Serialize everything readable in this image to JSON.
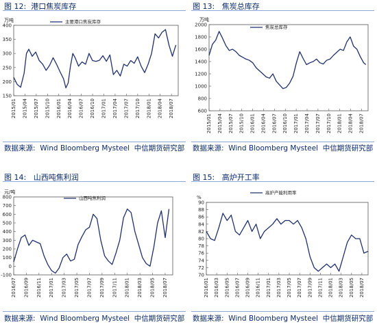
{
  "panels": [
    {
      "fig_title": "图 12:  港口焦炭库存",
      "source": "数据来源:  Wind Bloomberg Mysteel  中信期货研究部",
      "chart_data": {
        "type": "line",
        "unit": "万吨",
        "ylim": [
          150,
          400
        ],
        "yticks": [
          150,
          200,
          250,
          300,
          350,
          400
        ],
        "x_ticks": [
          "2015/01",
          "2015/04",
          "2015/07",
          "2015/10",
          "2016/01",
          "2016/04",
          "2016/07",
          "2016/10",
          "2017/01",
          "2017/04",
          "2017/07",
          "2017/10",
          "2018/01",
          "2018/04",
          "2018/07"
        ],
        "xlim": [
          0,
          14.2
        ],
        "legend": "position:top-right",
        "series": [
          {
            "name": "主要港口焦炭库存",
            "color": "#1f2f6e",
            "x": [
              0,
              0.3,
              0.6,
              0.9,
              1.1,
              1.3,
              1.6,
              1.9,
              2.2,
              2.5,
              2.8,
              3.1,
              3.4,
              3.7,
              4.0,
              4.3,
              4.5,
              4.7,
              4.9,
              5.1,
              5.3,
              5.6,
              5.9,
              6.2,
              6.5,
              6.8,
              7.1,
              7.4,
              7.7,
              8.0,
              8.3,
              8.6,
              8.9,
              9.2,
              9.5,
              9.8,
              10.1,
              10.4,
              10.7,
              11.0,
              11.3,
              11.6,
              11.9,
              12.2,
              12.5,
              12.8,
              13.1,
              13.4,
              13.7,
              14.0
            ],
            "y": [
              215,
              190,
              180,
              230,
              300,
              315,
              290,
              305,
              275,
              262,
              240,
              258,
              285,
              262,
              235,
              210,
              178,
              195,
              255,
              300,
              285,
              255,
              270,
              262,
              300,
              275,
              272,
              276,
              292,
              272,
              295,
              225,
              240,
              220,
              262,
              255,
              275,
              265,
              288,
              255,
              232,
              262,
              300,
              370,
              355,
              375,
              385,
              330,
              290,
              330
            ]
          }
        ]
      }
    },
    {
      "fig_title": "图 13:   焦炭总库存",
      "source": "数据来源:  Wind Bloomberg Mysteel  中信期货研究部",
      "chart_data": {
        "type": "line",
        "unit": "万吨",
        "ylim": [
          600,
          2000
        ],
        "yticks": [
          600,
          800,
          1000,
          1200,
          1400,
          1600,
          1800,
          2000
        ],
        "x_ticks": [
          "2015/01",
          "2015/04",
          "2015/07",
          "2015/10",
          "2016/01",
          "2016/04",
          "2016/07",
          "2016/10",
          "2017/01",
          "2017/04",
          "2017/07",
          "2017/10",
          "2018/01",
          "2018/04",
          "2018/07"
        ],
        "xlim": [
          0,
          14.2
        ],
        "legend": "position:top-right",
        "series": [
          {
            "name": "焦炭总库存",
            "color": "#1f2f6e",
            "x": [
              0,
              0.3,
              0.6,
              0.9,
              1.2,
              1.5,
              1.8,
              2.1,
              2.4,
              2.7,
              3.0,
              3.3,
              3.6,
              3.9,
              4.2,
              4.5,
              4.8,
              5.1,
              5.4,
              5.7,
              6.0,
              6.3,
              6.6,
              6.9,
              7.2,
              7.5,
              7.8,
              8.1,
              8.4,
              8.7,
              9.0,
              9.3,
              9.6,
              9.9,
              10.2,
              10.5,
              10.8,
              11.1,
              11.4,
              11.7,
              12.0,
              12.3,
              12.6,
              12.9,
              13.2,
              13.5,
              13.8,
              14.0
            ],
            "y": [
              1500,
              1680,
              1750,
              1890,
              1780,
              1660,
              1580,
              1600,
              1560,
              1500,
              1470,
              1440,
              1420,
              1380,
              1300,
              1250,
              1200,
              1150,
              1130,
              1200,
              1080,
              1020,
              960,
              980,
              1050,
              1160,
              1380,
              1560,
              1450,
              1350,
              1380,
              1400,
              1440,
              1380,
              1360,
              1420,
              1440,
              1500,
              1550,
              1600,
              1580,
              1720,
              1800,
              1650,
              1600,
              1480,
              1380,
              1350
            ]
          }
        ]
      }
    },
    {
      "fig_title": "图 14:   山西吨焦利润",
      "source": "数据来源:  Wind Bloomberg Mysteel  中信期货研究部",
      "chart_data": {
        "type": "line",
        "unit": "元/吨",
        "ylim": [
          -100,
          800
        ],
        "yticks": [
          -100,
          0,
          100,
          200,
          300,
          400,
          500,
          600,
          700,
          800
        ],
        "x_ticks": [
          "2016/07",
          "2016/09",
          "2016/11",
          "2017/01",
          "2017/03",
          "2017/05",
          "2017/07",
          "2017/09",
          "2017/11",
          "2018/01",
          "2018/03",
          "2018/05",
          "2018/07"
        ],
        "xlim": [
          0,
          12.6
        ],
        "legend": "position:top-right",
        "series": [
          {
            "name": "山西吨焦利润",
            "color": "#1f2f6e",
            "x": [
              0,
              0.3,
              0.6,
              0.9,
              1.2,
              1.5,
              1.8,
              2.1,
              2.4,
              2.7,
              3.0,
              3.3,
              3.6,
              3.9,
              4.2,
              4.5,
              4.8,
              5.1,
              5.4,
              5.7,
              6.0,
              6.3,
              6.6,
              6.9,
              7.2,
              7.5,
              7.8,
              8.1,
              8.4,
              8.7,
              9.0,
              9.3,
              9.6,
              9.9,
              10.2,
              10.5,
              10.8,
              11.1,
              11.4,
              11.7,
              12.0,
              12.3
            ],
            "y": [
              50,
              200,
              330,
              360,
              240,
              300,
              280,
              260,
              120,
              20,
              -50,
              -80,
              -20,
              100,
              140,
              60,
              80,
              250,
              340,
              420,
              450,
              600,
              550,
              300,
              120,
              60,
              20,
              150,
              300,
              560,
              660,
              620,
              400,
              250,
              100,
              30,
              0,
              220,
              500,
              640,
              330,
              660
            ]
          }
        ]
      }
    },
    {
      "fig_title": "图 15:   高炉开工率",
      "source": "数据来源:  Wind Bloomberg Mysteel  中信期货研究部",
      "chart_data": {
        "type": "line",
        "unit": "%",
        "ylim": [
          70,
          90
        ],
        "yticks": [
          70,
          72,
          74,
          76,
          78,
          80,
          82,
          84,
          86,
          88,
          90
        ],
        "x_ticks": [
          "2016/01",
          "2016/03",
          "2016/05",
          "2016/07",
          "2016/09",
          "2016/11",
          "2017/01",
          "2017/03",
          "2017/05",
          "2017/07",
          "2017/09",
          "2017/11",
          "2018/01",
          "2018/03",
          "2018/05",
          "2018/07"
        ],
        "xlim": [
          0,
          15.6
        ],
        "legend": "position:top-right",
        "series": [
          {
            "name": "高炉产能利用率",
            "color": "#1f2f6e",
            "x": [
              0,
              0.4,
              0.8,
              1.2,
              1.6,
              2.0,
              2.4,
              2.8,
              3.2,
              3.6,
              4.0,
              4.4,
              4.8,
              5.2,
              5.6,
              6.0,
              6.4,
              6.8,
              7.2,
              7.6,
              8.0,
              8.4,
              8.8,
              9.2,
              9.6,
              10.0,
              10.4,
              10.8,
              11.2,
              11.6,
              12.0,
              12.4,
              12.8,
              13.2,
              13.6,
              14.0,
              14.4,
              14.8,
              15.2,
              15.6
            ],
            "y": [
              82,
              80,
              79.5,
              83,
              87,
              85,
              86.5,
              82,
              81,
              83,
              85,
              82,
              84,
              80,
              82,
              83,
              84,
              85.5,
              84,
              85,
              85,
              84,
              85,
              83,
              80,
              75,
              72,
              71,
              72,
              73,
              72,
              73,
              71,
              75,
              79,
              81,
              80,
              80,
              76,
              76.5
            ]
          }
        ]
      }
    }
  ]
}
